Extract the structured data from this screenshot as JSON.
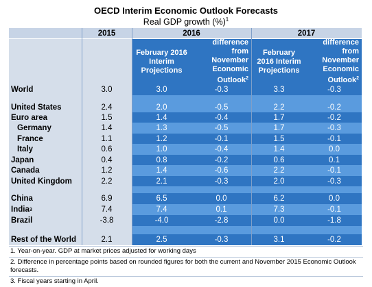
{
  "title": "OECD Interim Economic Outlook Forecasts",
  "subtitle": "Real GDP growth (%)",
  "subtitle_note": "1",
  "header": {
    "year_2015": "2015",
    "year_2016": "2016",
    "year_2017": "2017",
    "proj_label": "February 2016 Interim Projections",
    "diff_label": "difference from November Economic Outlook",
    "diff_note": "2"
  },
  "colors": {
    "header_blue": "#2f75c2",
    "light_blue": "#5a9bde",
    "label_bg": "#d5deea"
  },
  "rows": [
    {
      "country": "World",
      "note": "",
      "v2015": "3.0",
      "p2016": "3.0",
      "d2016": "-0.3",
      "p2017": "3.3",
      "d2017": "-0.3"
    },
    {
      "country": "United States",
      "note": "",
      "v2015": "2.4",
      "p2016": "2.0",
      "d2016": "-0.5",
      "p2017": "2.2",
      "d2017": "-0.2"
    },
    {
      "country": "Euro area",
      "note": "",
      "v2015": "1.5",
      "p2016": "1.4",
      "d2016": "-0.4",
      "p2017": "1.7",
      "d2017": "-0.2"
    },
    {
      "country": "Germany",
      "note": "",
      "v2015": "1.4",
      "p2016": "1.3",
      "d2016": "-0.5",
      "p2017": "1.7",
      "d2017": "-0.3"
    },
    {
      "country": "France",
      "note": "",
      "v2015": "1.1",
      "p2016": "1.2",
      "d2016": "-0.1",
      "p2017": "1.5",
      "d2017": "-0.1"
    },
    {
      "country": "Italy",
      "note": "",
      "v2015": "0.6",
      "p2016": "1.0",
      "d2016": "-0.4",
      "p2017": "1.4",
      "d2017": "0.0"
    },
    {
      "country": "Japan",
      "note": "",
      "v2015": "0.4",
      "p2016": "0.8",
      "d2016": "-0.2",
      "p2017": "0.6",
      "d2017": "0.1"
    },
    {
      "country": "Canada",
      "note": "",
      "v2015": "1.2",
      "p2016": "1.4",
      "d2016": "-0.6",
      "p2017": "2.2",
      "d2017": "-0.1"
    },
    {
      "country": "United Kingdom",
      "note": "",
      "v2015": "2.2",
      "p2016": "2.1",
      "d2016": "-0.3",
      "p2017": "2.0",
      "d2017": "-0.3"
    },
    {
      "country": "China",
      "note": "",
      "v2015": "6.9",
      "p2016": "6.5",
      "d2016": "0.0",
      "p2017": "6.2",
      "d2017": "0.0"
    },
    {
      "country": "India",
      "note": "3",
      "v2015": "7.4",
      "p2016": "7.4",
      "d2016": "0.1",
      "p2017": "7.3",
      "d2017": "-0.1"
    },
    {
      "country": "Brazil",
      "note": "",
      "v2015": "-3.8",
      "p2016": "-4.0",
      "d2016": "-2.8",
      "p2017": "0.0",
      "d2017": "-1.8"
    },
    {
      "country": "Rest of the World",
      "note": "",
      "v2015": "2.1",
      "p2016": "2.5",
      "d2016": "-0.3",
      "p2017": "3.1",
      "d2017": "-0.2"
    }
  ],
  "notes": [
    "1. Year-on-year. GDP at market prices adjusted for working days",
    "2. Difference in percentage points based on rounded figures for both the current and November 2015 Economic Outlook forecasts.",
    "3. Fiscal years starting in April."
  ]
}
